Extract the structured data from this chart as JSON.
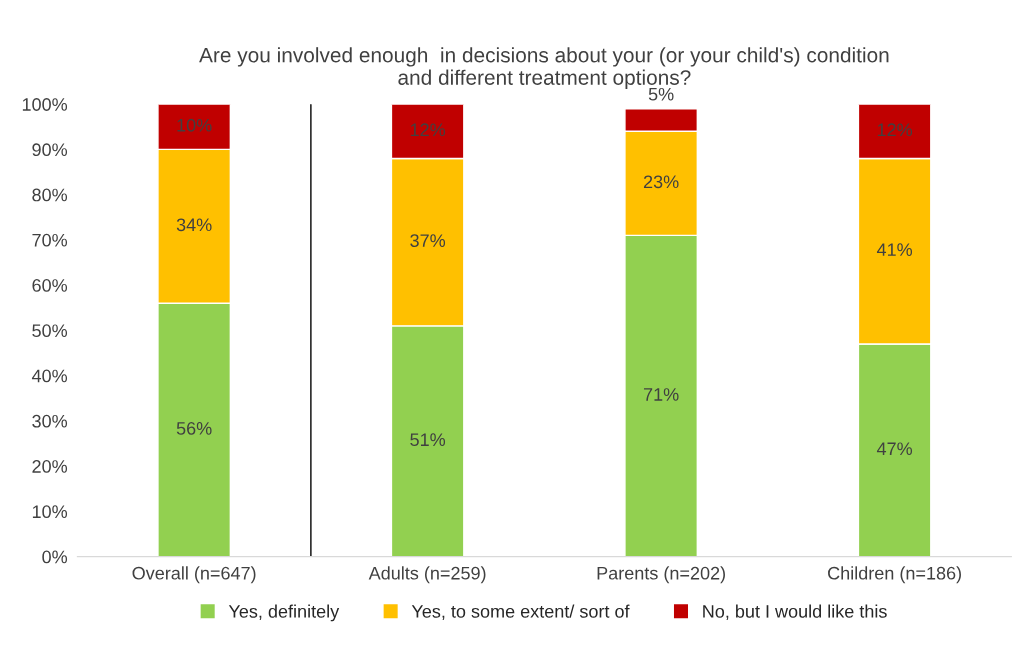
{
  "chart_data": {
    "type": "bar",
    "stacked": true,
    "title": "Are you involved enough  in decisions about your (or your child's) condition\nand different treatment options?",
    "categories": [
      "Overall (n=647)",
      "Adults (n=259)",
      "Parents (n=202)",
      "Children (n=186)"
    ],
    "series": [
      {
        "name": "Yes, definitely",
        "color": "#92d050",
        "values": [
          56,
          51,
          71,
          47
        ],
        "value_labels": [
          "56%",
          "51%",
          "71%",
          "47%"
        ]
      },
      {
        "name": "Yes, to some extent/ sort of",
        "color": "#ffc000",
        "values": [
          34,
          37,
          23,
          41
        ],
        "value_labels": [
          "34%",
          "37%",
          "23%",
          "41%"
        ]
      },
      {
        "name": "No, but I would like this",
        "color": "#c00000",
        "values": [
          10,
          12,
          5,
          12
        ],
        "value_labels": [
          "10%",
          "12%",
          "5%",
          "12%"
        ]
      }
    ],
    "ylim": [
      0,
      100
    ],
    "yticks": [
      {
        "value": 0,
        "label": "0%"
      },
      {
        "value": 10,
        "label": "10%"
      },
      {
        "value": 20,
        "label": "20%"
      },
      {
        "value": 30,
        "label": "30%"
      },
      {
        "value": 40,
        "label": "40%"
      },
      {
        "value": 50,
        "label": "50%"
      },
      {
        "value": 60,
        "label": "60%"
      },
      {
        "value": 70,
        "label": "70%"
      },
      {
        "value": 80,
        "label": "80%"
      },
      {
        "value": 90,
        "label": "90%"
      },
      {
        "value": 100,
        "label": "100%"
      }
    ],
    "grid": false,
    "legend": "bottom"
  }
}
